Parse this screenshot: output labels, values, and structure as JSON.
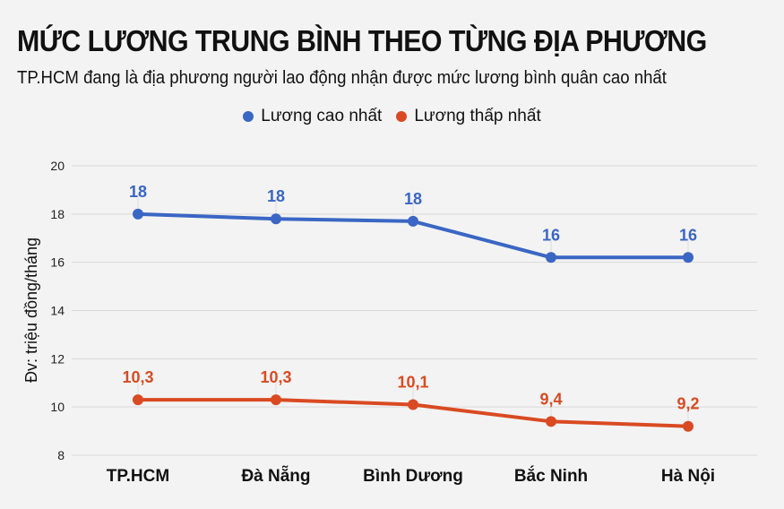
{
  "header": {
    "title": "MỨC LƯƠNG TRUNG BÌNH THEO TỪNG ĐỊA PHƯƠNG",
    "subtitle": "TP.HCM đang là địa phương người lao động nhận được mức lương bình quân cao nhất"
  },
  "legend": [
    {
      "label": "Lương cao nhất",
      "color": "#3a66c4"
    },
    {
      "label": "Lương thấp nhất",
      "color": "#d94a22"
    }
  ],
  "chart_data": {
    "type": "line",
    "title": "MỨC LƯƠNG TRUNG BÌNH THEO TỪNG ĐỊA PHƯƠNG",
    "subtitle": "TP.HCM đang là địa phương người lao động nhận được mức lương bình quân cao nhất",
    "xlabel": "",
    "ylabel": "Đv: triệu đồng/tháng",
    "categories": [
      "TP.HCM",
      "Đà Nẵng",
      "Bình Dương",
      "Bắc Ninh",
      "Hà Nội"
    ],
    "series": [
      {
        "name": "Lương cao nhất",
        "color": "#3a66c4",
        "values": [
          18.0,
          17.8,
          17.7,
          16.2,
          16.2
        ],
        "labels": [
          "18",
          "18",
          "18",
          "16",
          "16"
        ]
      },
      {
        "name": "Lương thấp nhất",
        "color": "#d94a22",
        "values": [
          10.3,
          10.3,
          10.1,
          9.4,
          9.2
        ],
        "labels": [
          "10,3",
          "10,3",
          "10,1",
          "9,4",
          "9,2"
        ]
      }
    ],
    "yticks": [
      "8",
      "10",
      "12",
      "14",
      "16",
      "18",
      "20"
    ],
    "ylim": [
      8,
      20
    ],
    "grid": true,
    "legend_position": "top"
  }
}
